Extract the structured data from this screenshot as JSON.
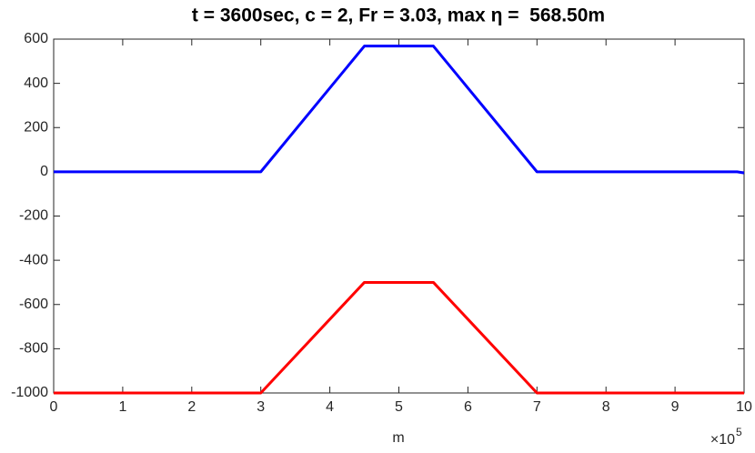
{
  "chart_data": {
    "type": "line",
    "title": "t = 3600sec, c = 2, Fr = 3.03, max η =  568.50m",
    "x_label": "m",
    "x_scale_label": {
      "base": "×10",
      "exponent": "5"
    },
    "series": [
      {
        "color": "#0000ff",
        "x": [
          0,
          3,
          4.5,
          5.5,
          7,
          9.9,
          10
        ],
        "values": [
          0,
          0,
          568.5,
          568.5,
          0,
          0,
          -5
        ]
      },
      {
        "color": "#ff0000",
        "x": [
          0,
          3,
          4.5,
          5.5,
          7,
          10
        ],
        "values": [
          -1000,
          -1000,
          -500,
          -500,
          -1000,
          -1000
        ]
      }
    ],
    "xlim": [
      0,
      10
    ],
    "xticks": [
      0,
      1,
      2,
      3,
      4,
      5,
      6,
      7,
      8,
      9,
      10
    ],
    "ylim": [
      -1000,
      600
    ],
    "yticks": [
      -1000,
      -800,
      -600,
      -400,
      -200,
      0,
      200,
      400,
      600
    ],
    "grid": false
  }
}
